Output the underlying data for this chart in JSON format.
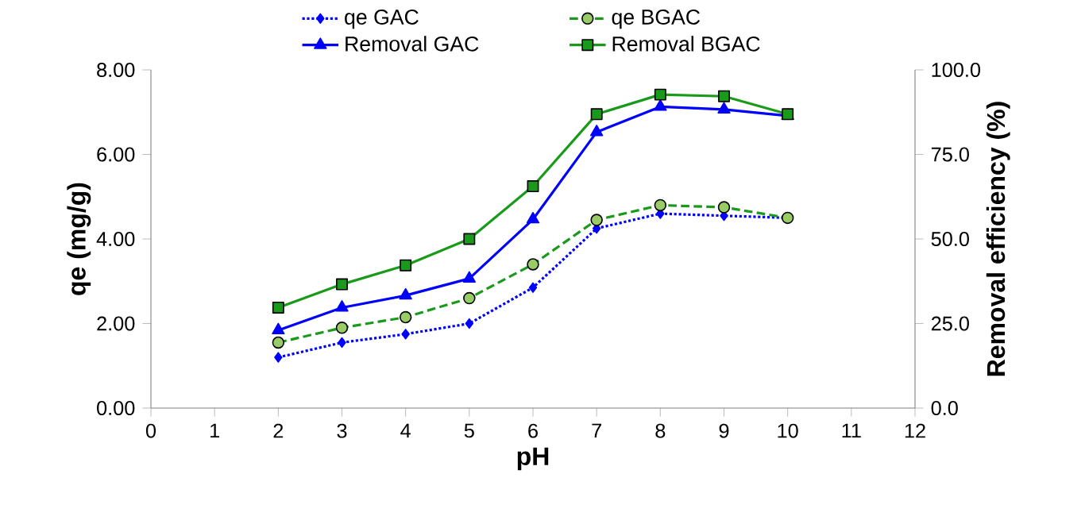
{
  "chart_data": {
    "type": "line",
    "xlabel": "pH",
    "ylabel": "qe (mg/g)",
    "y2label": "Removal efficiency (%)",
    "x": [
      2,
      3,
      4,
      5,
      6,
      7,
      8,
      9,
      10
    ],
    "xlim": [
      0,
      12
    ],
    "xticks": [
      0,
      1,
      2,
      3,
      4,
      5,
      6,
      7,
      8,
      9,
      10,
      11,
      12
    ],
    "ylim": [
      0,
      8
    ],
    "yticks": [
      {
        "value": 0,
        "label": "0.00"
      },
      {
        "value": 2,
        "label": "2.00"
      },
      {
        "value": 4,
        "label": "4.00"
      },
      {
        "value": 6,
        "label": "6.00"
      },
      {
        "value": 8,
        "label": "8.00"
      }
    ],
    "y2lim": [
      0,
      100
    ],
    "y2ticks": [
      {
        "value": 0,
        "label": "0.0"
      },
      {
        "value": 25,
        "label": "25.0"
      },
      {
        "value": 50,
        "label": "50.0"
      },
      {
        "value": 75,
        "label": "75.0"
      },
      {
        "value": 100,
        "label": "100.0"
      }
    ],
    "grid": false,
    "legend": "top",
    "series": [
      {
        "name": "qe GAC",
        "color": "#0000ff",
        "marker": "diamond",
        "line_style": "dotted",
        "values": [
          1.2,
          1.55,
          1.75,
          2.0,
          2.85,
          4.25,
          4.6,
          4.55,
          4.5
        ]
      },
      {
        "name": "qe  BGAC",
        "color": "#1a9a1a",
        "marker": "circle",
        "line_style": "dashed",
        "values": [
          1.55,
          1.9,
          2.15,
          2.6,
          3.4,
          4.45,
          4.8,
          4.75,
          4.5
        ]
      },
      {
        "name": "Removal GAC",
        "color": "#0000ff",
        "marker": "triangle",
        "line_style": "solid",
        "axis": "y2",
        "values": [
          23.0,
          29.7,
          33.3,
          38.3,
          55.8,
          81.6,
          89.1,
          88.3,
          86.4
        ]
      },
      {
        "name": "Removal BGAC",
        "color": "#1a9a1a",
        "marker": "square",
        "line_style": "solid",
        "axis": "y2",
        "values": [
          29.7,
          36.6,
          42.2,
          50.0,
          65.6,
          86.9,
          92.7,
          92.2,
          86.9
        ]
      }
    ]
  }
}
